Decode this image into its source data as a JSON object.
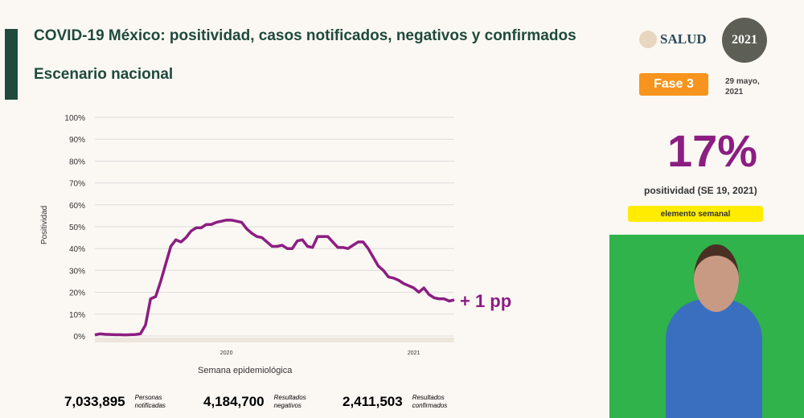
{
  "header": {
    "title": "COVID-19 México: positividad, casos notificados, negativos y confirmados",
    "subtitle": "Escenario nacional"
  },
  "logos": {
    "salud": "SALUD",
    "seal": "2021"
  },
  "side": {
    "fase": "Fase 3",
    "date": "29 mayo, 2021",
    "big_value": "17%",
    "positividad_label": "positividad (SE 19, 2021)",
    "weekly_label": "elemento semanal"
  },
  "annotation": "+ 1 pp",
  "summary": [
    {
      "value": "7,033,895",
      "label": "Personas notificadas",
      "bg": "#ecd3d9",
      "color": "#7a1e3a"
    },
    {
      "value": "4,184,700",
      "label": "Resultados negativos",
      "bg": "#bff0da",
      "color": "#0f8a50"
    },
    {
      "value": "2,411,503",
      "label": "Resultados confirmados",
      "bg": "#f1e2d4",
      "color": "#b0875e"
    }
  ],
  "chart_data": {
    "type": "line",
    "title": "",
    "xlabel": "Semana epidemiológica",
    "ylabel": "Positividad",
    "ylim": [
      0,
      100
    ],
    "yticks": [
      "0%",
      "10%",
      "20%",
      "30%",
      "40%",
      "50%",
      "60%",
      "70%",
      "80%",
      "90%",
      "100%"
    ],
    "year_labels": [
      {
        "label": "2020",
        "index": 26
      },
      {
        "label": "2021",
        "index": 63
      }
    ],
    "color": "#8c1d82",
    "series": [
      {
        "name": "Positividad",
        "values": [
          0.5,
          1,
          0.8,
          0.7,
          0.6,
          0.6,
          0.5,
          0.6,
          0.7,
          1,
          5,
          17,
          18,
          25,
          33,
          41,
          44,
          43,
          45,
          48,
          49.5,
          49.5,
          51,
          51,
          52,
          52.5,
          53,
          53,
          52.5,
          52,
          49,
          47,
          45.5,
          45,
          43,
          41,
          41,
          41.5,
          40,
          40,
          43.5,
          44,
          41,
          40.5,
          45.5,
          45.5,
          45.5,
          43,
          40.5,
          40.5,
          40,
          41.5,
          43,
          43,
          40,
          36,
          32,
          30,
          27,
          26.5,
          25.5,
          24,
          23,
          22,
          20,
          22,
          19,
          17.5,
          17,
          17,
          16,
          16.5
        ]
      }
    ]
  }
}
